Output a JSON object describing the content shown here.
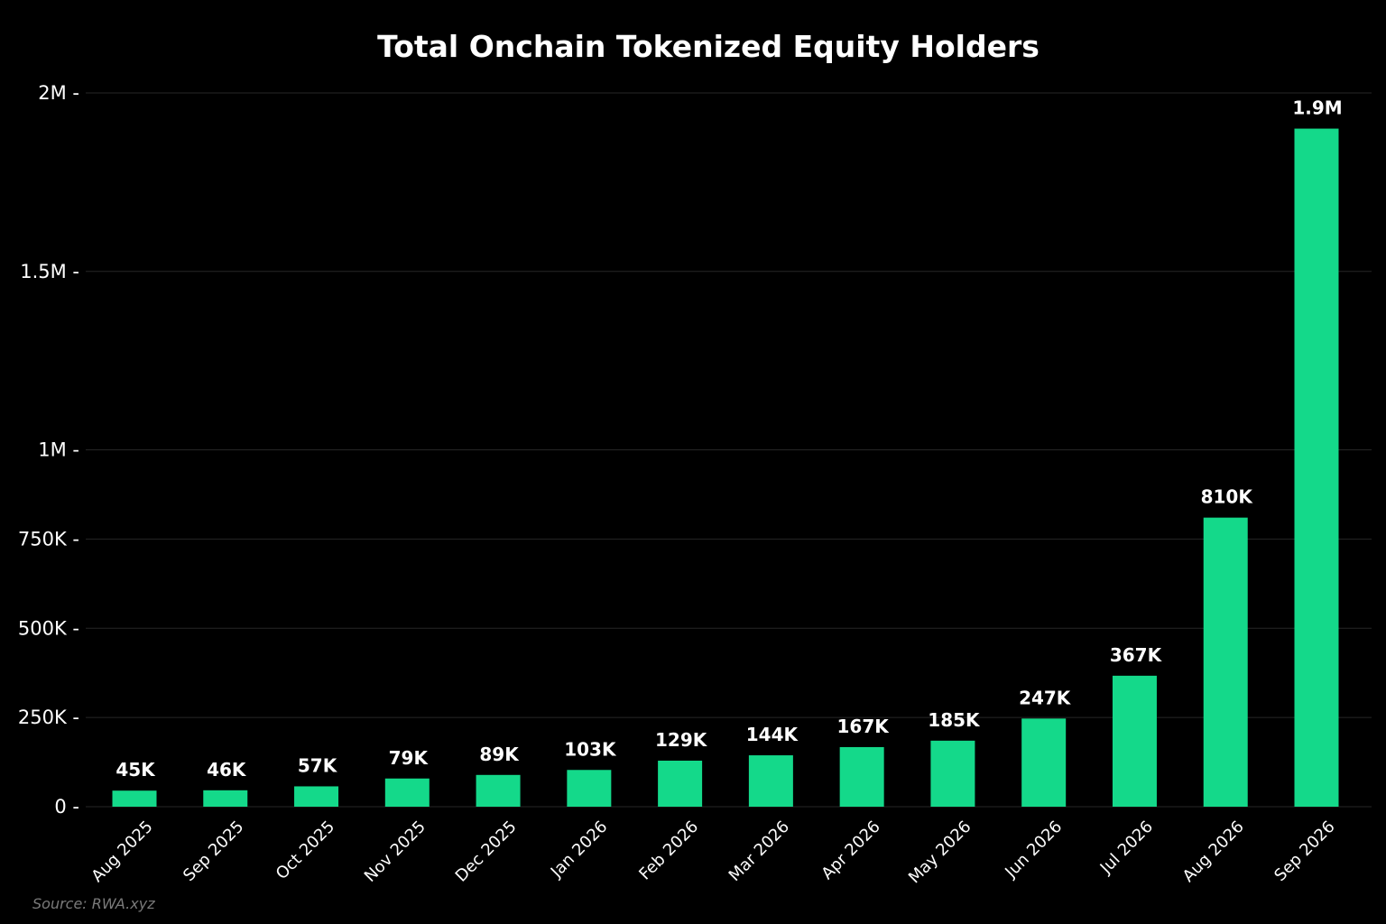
{
  "chart_data": {
    "type": "bar",
    "title": "Total Onchain Tokenized Equity Holders",
    "xlabel": "",
    "ylabel": "",
    "categories": [
      "Aug 2025",
      "Sep 2025",
      "Oct 2025",
      "Nov 2025",
      "Dec 2025",
      "Jan 2026",
      "Feb 2026",
      "Mar 2026",
      "Apr 2026",
      "May 2026",
      "Jun 2026",
      "Jul 2026",
      "Aug 2026",
      "Sep 2026"
    ],
    "values": [
      45000,
      46000,
      57000,
      79000,
      89000,
      103000,
      129000,
      144000,
      167000,
      185000,
      247000,
      367000,
      810000,
      1900000
    ],
    "value_labels": [
      "45K",
      "46K",
      "57K",
      "79K",
      "89K",
      "103K",
      "129K",
      "144K",
      "167K",
      "185K",
      "247K",
      "367K",
      "810K",
      "1.9M"
    ],
    "ylim": [
      0,
      2000000
    ],
    "yticks": [
      0,
      250000,
      500000,
      750000,
      1000000,
      1500000,
      2000000
    ],
    "ytick_labels": [
      "0",
      "250K",
      "500K",
      "750K",
      "1M",
      "1.5M",
      "2M"
    ],
    "grid": true,
    "colors": {
      "background": "#000000",
      "bar": "#14d98a",
      "text": "#ffffff",
      "grid": "#262626",
      "source": "#7a7a7a"
    }
  },
  "source": "Source: RWA.xyz"
}
